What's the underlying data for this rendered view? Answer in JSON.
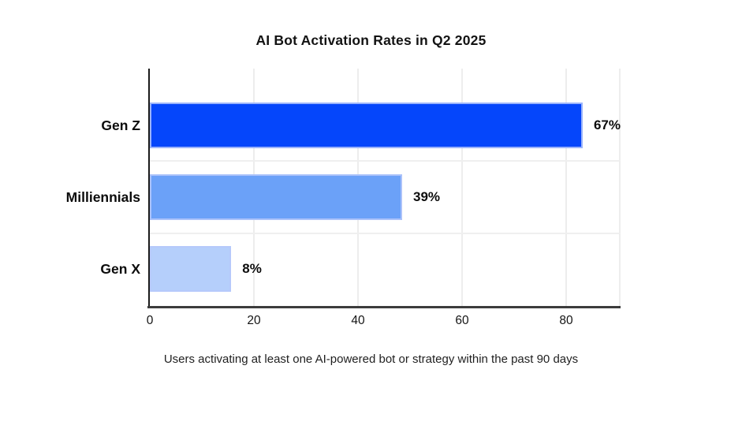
{
  "chart_data": {
    "type": "bar",
    "orientation": "horizontal",
    "title": "AI Bot Activation Rates in Q2 2025",
    "caption": "Users activating at least one AI-powered bot or strategy within the past 90 days",
    "categories": [
      "Gen Z",
      "Milliennials",
      "Gen X"
    ],
    "values": [
      67,
      39,
      8
    ],
    "x_ticks": [
      "0",
      "20",
      "40",
      "60",
      "80"
    ],
    "xlim": [
      0,
      90.5
    ],
    "grid": true,
    "legend": false,
    "rows": [
      {
        "category": "Gen Z",
        "value": 67,
        "value_label": "67%",
        "color": "#0546fb",
        "visual_axis_extent": 86.5,
        "visual_pct": "95.6%"
      },
      {
        "category": "Milliennials",
        "value": 39,
        "value_label": "39%",
        "color": "#6ba1f8",
        "visual_axis_extent": 48.5,
        "visual_pct": "53.6%"
      },
      {
        "category": "Gen X",
        "value": 8,
        "value_label": "8%",
        "color": "#b5cffb",
        "visual_axis_extent": 15.6,
        "visual_pct": "17.3%"
      }
    ]
  }
}
